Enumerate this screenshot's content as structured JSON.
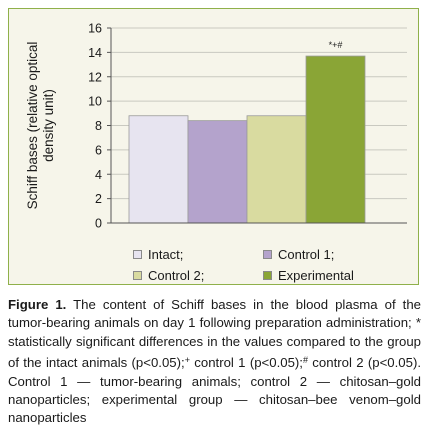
{
  "chart_data": {
    "type": "bar",
    "categories": [
      "Intact;",
      "Control 1;",
      "Control 2;",
      "Experimental"
    ],
    "values": [
      8.8,
      8.4,
      8.8,
      13.7
    ],
    "colors": [
      "#e7e4f0",
      "#b4a3cc",
      "#d9dba0",
      "#8aa536"
    ],
    "ylabel": "Schiff bases (relative optical density unit)",
    "ylim": [
      0,
      16
    ],
    "yticks": [
      0,
      2,
      4,
      6,
      8,
      10,
      12,
      14,
      16
    ],
    "annotations": [
      {
        "category": "Experimental",
        "text": "*+#"
      }
    ],
    "legend": {
      "placement": "bottom",
      "columns": 2
    },
    "grid": true
  },
  "caption": {
    "label": "Figure 1.",
    "text": " The content of Schiff bases in the blood plasma of the tumor-bearing animals on day 1 following preparation administration; * statistically significant differences in the values compared to the group of the intact animals (p<0.05);",
    "sup_plus": "+",
    "text2": " control 1 (p<0.05);",
    "sup_hash": "#",
    "text3": " control 2 (p<0.05). Control 1 — tumor-bearing animals; control 2 — chitosan–gold nanoparticles; experimental group — chitosan–bee venom–gold nanoparticles"
  }
}
